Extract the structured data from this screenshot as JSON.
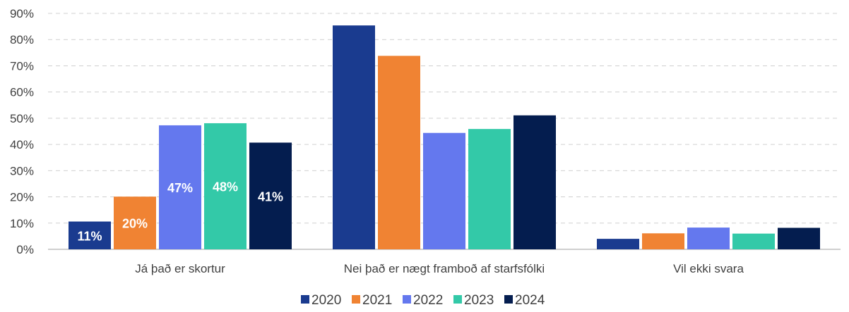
{
  "chart_data": {
    "type": "bar",
    "title": "",
    "xlabel": "",
    "ylabel": "",
    "ylim": [
      0,
      90
    ],
    "yticks": [
      0,
      10,
      20,
      30,
      40,
      50,
      60,
      70,
      80,
      90
    ],
    "ytick_labels": [
      "0%",
      "10%",
      "20%",
      "30%",
      "40%",
      "50%",
      "60%",
      "70%",
      "80%",
      "90%"
    ],
    "categories": [
      "Já það er skortur",
      "Nei það er nægt framboð af starfsfólki",
      "Vil ekki svara"
    ],
    "series": [
      {
        "name": "2020",
        "color": "#1a3b8f",
        "values": [
          10.6,
          85.4,
          4.0
        ]
      },
      {
        "name": "2021",
        "color": "#f08333",
        "values": [
          20.1,
          73.8,
          6.1
        ]
      },
      {
        "name": "2022",
        "color": "#6478ee",
        "values": [
          47.3,
          44.4,
          8.3
        ]
      },
      {
        "name": "2023",
        "color": "#33c9a8",
        "values": [
          48.1,
          45.9,
          6.0
        ]
      },
      {
        "name": "2024",
        "color": "#041d4f",
        "values": [
          40.7,
          51.1,
          8.2
        ]
      }
    ],
    "data_labels": [
      [
        "11%",
        null,
        null
      ],
      [
        "20%",
        null,
        null
      ],
      [
        "47%",
        null,
        null
      ],
      [
        "48%",
        null,
        null
      ],
      [
        "41%",
        null,
        null
      ]
    ],
    "grid": true,
    "legend_position": "bottom"
  }
}
